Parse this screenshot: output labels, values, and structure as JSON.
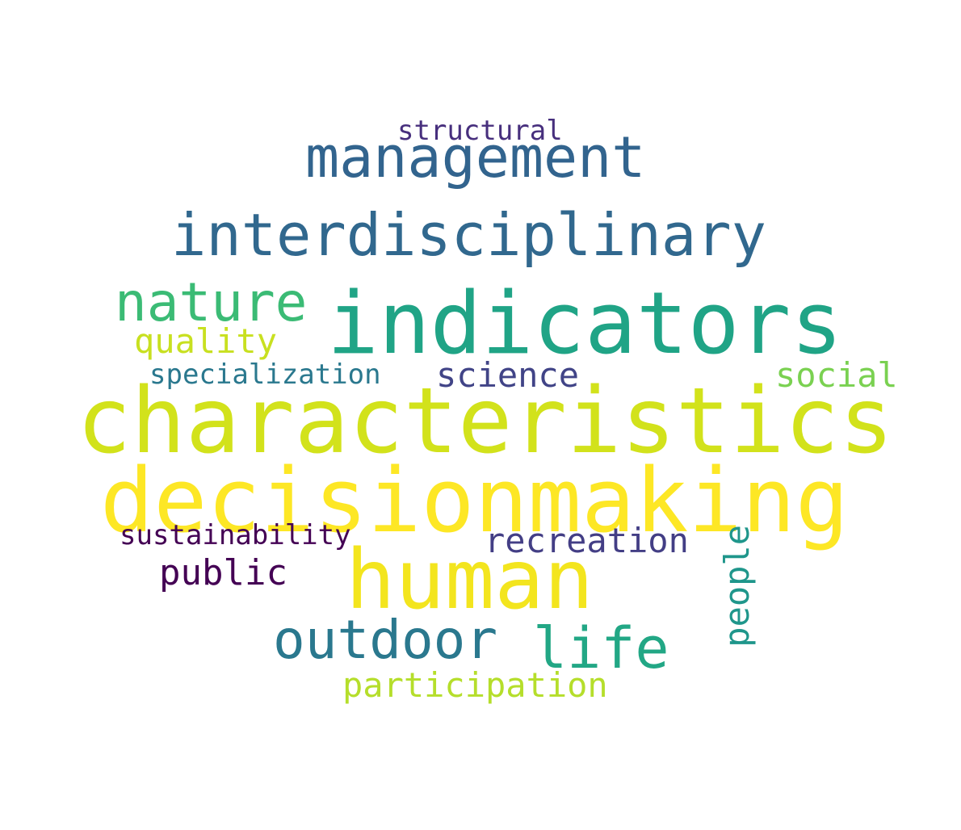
{
  "words": {
    "structural": {
      "text": "structural",
      "color": "#472f7d"
    },
    "management": {
      "text": "management",
      "color": "#32648e"
    },
    "interdisciplinary": {
      "text": "interdisciplinary",
      "color": "#31688e"
    },
    "nature": {
      "text": "nature",
      "color": "#3bbb75"
    },
    "indicators": {
      "text": "indicators",
      "color": "#20a486"
    },
    "quality": {
      "text": "quality",
      "color": "#c8e020"
    },
    "specialization": {
      "text": "specialization",
      "color": "#2a788e"
    },
    "science": {
      "text": "science",
      "color": "#414487"
    },
    "social": {
      "text": "social",
      "color": "#7ad151"
    },
    "characteristics": {
      "text": "characteristics",
      "color": "#d2e21b"
    },
    "decisionmaking": {
      "text": "decisionmaking",
      "color": "#fde725"
    },
    "sustainability": {
      "text": "sustainability",
      "color": "#440154"
    },
    "recreation": {
      "text": "recreation",
      "color": "#433e85"
    },
    "public": {
      "text": "public",
      "color": "#440154"
    },
    "human": {
      "text": "human",
      "color": "#f3e51e"
    },
    "outdoor": {
      "text": "outdoor",
      "color": "#2a788e"
    },
    "life": {
      "text": "life",
      "color": "#22a785"
    },
    "participation": {
      "text": "participation",
      "color": "#b5de2b"
    },
    "people": {
      "text": "people",
      "color": "#1f968b"
    }
  }
}
